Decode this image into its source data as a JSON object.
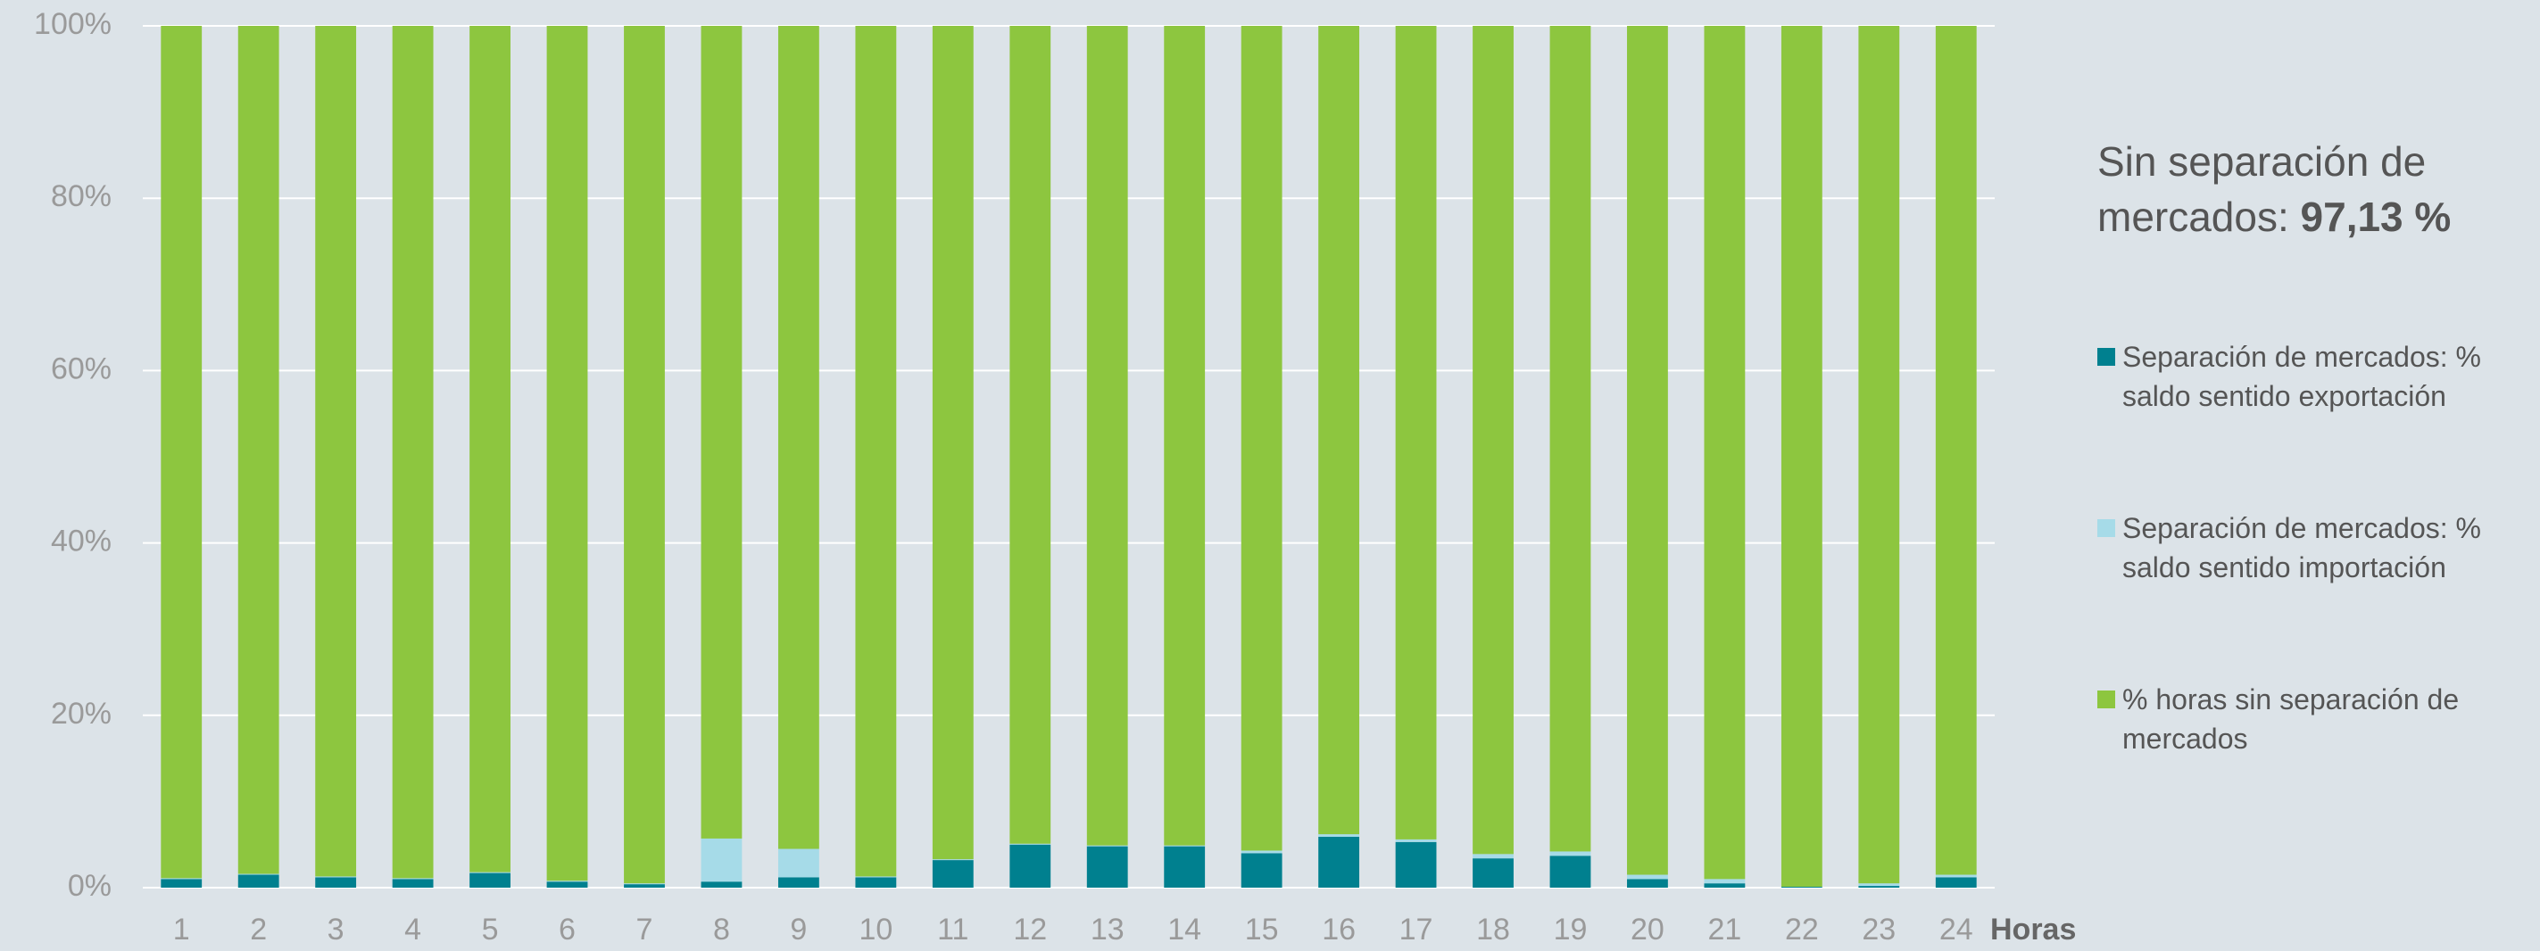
{
  "chart_data": {
    "type": "stacked_bar",
    "headline": "Sin separación de mercados:",
    "headline_value": "97,13 %",
    "xlabel": "Horas",
    "categories": [
      "1",
      "2",
      "3",
      "4",
      "5",
      "6",
      "7",
      "8",
      "9",
      "10",
      "11",
      "12",
      "13",
      "14",
      "15",
      "16",
      "17",
      "18",
      "19",
      "20",
      "21",
      "22",
      "23",
      "24"
    ],
    "series": [
      {
        "name": "Separación de mercados: % saldo sentido exportación",
        "color": "#00808f",
        "values": [
          1.0,
          1.5,
          1.2,
          1.0,
          1.7,
          0.7,
          0.4,
          0.7,
          1.2,
          1.2,
          3.2,
          5.0,
          4.8,
          4.8,
          4.0,
          5.9,
          5.3,
          3.4,
          3.7,
          1.0,
          0.5,
          0.1,
          0.2,
          1.2
        ]
      },
      {
        "name": "Separación de mercados: % saldo sentido importación",
        "color": "#a6dbe8",
        "values": [
          0.1,
          0.1,
          0.1,
          0.1,
          0.1,
          0.1,
          0.1,
          5.0,
          3.3,
          0.1,
          0.1,
          0.1,
          0.1,
          0.1,
          0.3,
          0.3,
          0.3,
          0.5,
          0.5,
          0.5,
          0.5,
          0.0,
          0.3,
          0.3
        ]
      },
      {
        "name": "% horas sin separación de mercados",
        "color": "#8dc63f",
        "values": [
          98.9,
          98.4,
          98.7,
          98.9,
          98.2,
          99.2,
          99.5,
          94.3,
          95.5,
          98.7,
          96.7,
          94.9,
          95.1,
          95.1,
          95.7,
          93.8,
          94.4,
          96.1,
          95.8,
          98.5,
          99.0,
          99.9,
          99.5,
          98.5
        ]
      }
    ],
    "ylim": [
      0,
      100
    ],
    "yticks": [
      {
        "value": 0,
        "label": "0%"
      },
      {
        "value": 20,
        "label": "20%"
      },
      {
        "value": 40,
        "label": "40%"
      },
      {
        "value": 60,
        "label": "60%"
      },
      {
        "value": 80,
        "label": "80%"
      },
      {
        "value": 100,
        "label": "100%"
      }
    ],
    "grid": true
  }
}
